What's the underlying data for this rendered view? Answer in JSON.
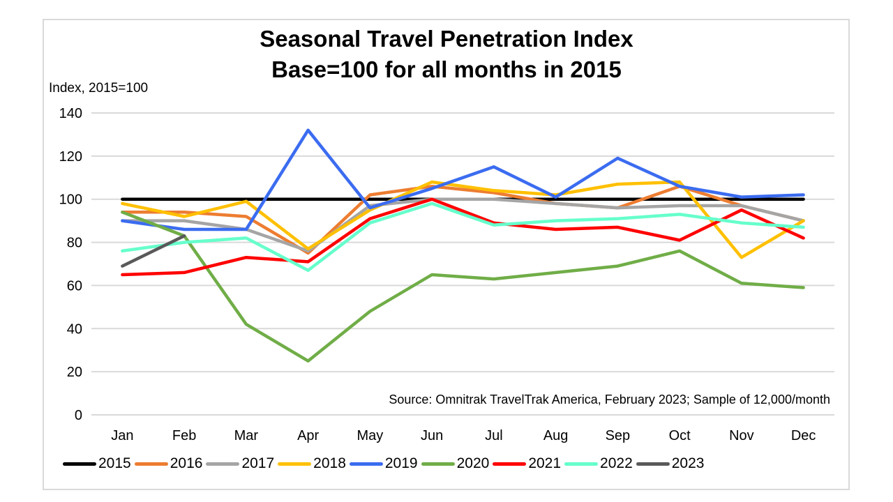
{
  "chart_data": {
    "type": "line",
    "title": "Seasonal Travel Penetration Index",
    "subtitle": "Base=100 for all months in 2015",
    "xlabel": "",
    "ylabel": "Index, 2015=100",
    "ylim": [
      0,
      140
    ],
    "yticks": [
      0,
      20,
      40,
      60,
      80,
      100,
      120,
      140
    ],
    "grid": true,
    "legend_position": "bottom",
    "annotation": "Source: Omnitrak TravelTrak America, February 2023; Sample of 12,000/month",
    "categories": [
      "Jan",
      "Feb",
      "Mar",
      "Apr",
      "May",
      "Jun",
      "Jul",
      "Aug",
      "Sep",
      "Oct",
      "Nov",
      "Dec"
    ],
    "series": [
      {
        "name": "2015",
        "color": "#000000",
        "values": [
          100,
          100,
          100,
          100,
          100,
          100,
          100,
          100,
          100,
          100,
          100,
          100
        ]
      },
      {
        "name": "2016",
        "color": "#ED7D31",
        "values": [
          94,
          94,
          92,
          75,
          102,
          106,
          103,
          98,
          96,
          106,
          97,
          90
        ]
      },
      {
        "name": "2017",
        "color": "#A5A5A5",
        "values": [
          90,
          90,
          86,
          76,
          97,
          100,
          100,
          98,
          96,
          97,
          97,
          90
        ]
      },
      {
        "name": "2018",
        "color": "#FFC000",
        "values": [
          98,
          92,
          99,
          77,
          95,
          108,
          104,
          102,
          107,
          108,
          73,
          90
        ]
      },
      {
        "name": "2019",
        "color": "#3B6CF0",
        "values": [
          90,
          86,
          86,
          132,
          96,
          105,
          115,
          101,
          119,
          106,
          101,
          102
        ]
      },
      {
        "name": "2020",
        "color": "#70AD47",
        "values": [
          94,
          83,
          42,
          25,
          48,
          65,
          63,
          66,
          69,
          76,
          61,
          59
        ]
      },
      {
        "name": "2021",
        "color": "#FF0000",
        "values": [
          65,
          66,
          73,
          71,
          91,
          100,
          89,
          86,
          87,
          81,
          95,
          82
        ]
      },
      {
        "name": "2022",
        "color": "#66FFCC",
        "values": [
          76,
          80,
          82,
          67,
          89,
          98,
          88,
          90,
          91,
          93,
          89,
          87
        ]
      },
      {
        "name": "2023",
        "color": "#595959",
        "values": [
          69,
          83,
          null,
          null,
          null,
          null,
          null,
          null,
          null,
          null,
          null,
          null
        ]
      }
    ]
  }
}
